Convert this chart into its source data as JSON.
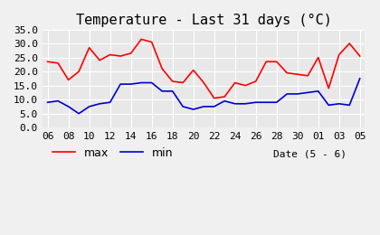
{
  "title": "Temperature - Last 31 days (°C)",
  "xlabel": "Date (5 - 6)",
  "xlabels": [
    "06",
    "08",
    "10",
    "12",
    "14",
    "16",
    "18",
    "20",
    "22",
    "24",
    "26",
    "28",
    "30",
    "01",
    "03",
    "05"
  ],
  "max_temps": [
    23.5,
    23.0,
    17.0,
    20.0,
    28.5,
    24.0,
    26.0,
    25.5,
    26.5,
    31.5,
    30.5,
    21.0,
    16.5,
    16.0,
    20.5,
    16.0,
    10.5,
    11.0,
    16.0,
    15.0,
    16.5,
    23.5,
    23.5,
    19.5,
    19.0,
    18.5,
    25.0,
    14.0,
    26.0,
    30.0,
    25.5
  ],
  "min_temps": [
    9.0,
    9.5,
    7.5,
    5.0,
    7.5,
    8.5,
    9.0,
    15.5,
    15.5,
    16.0,
    16.0,
    13.0,
    13.0,
    7.5,
    6.5,
    7.5,
    7.5,
    9.5,
    8.5,
    8.5,
    9.0,
    9.0,
    9.0,
    12.0,
    12.0,
    12.5,
    13.0,
    8.0,
    8.5,
    8.0,
    17.5
  ],
  "max_color": "#ff0000",
  "min_color": "#0000cc",
  "bg_color": "#f0f0f0",
  "plot_bg_color": "#e8e8e8",
  "grid_color": "#ffffff",
  "ylim": [
    0.0,
    35.0
  ],
  "yticks": [
    0.0,
    5.0,
    10.0,
    15.0,
    20.0,
    25.0,
    30.0,
    35.0
  ],
  "title_fontsize": 11,
  "legend_fontsize": 9,
  "tick_fontsize": 8
}
